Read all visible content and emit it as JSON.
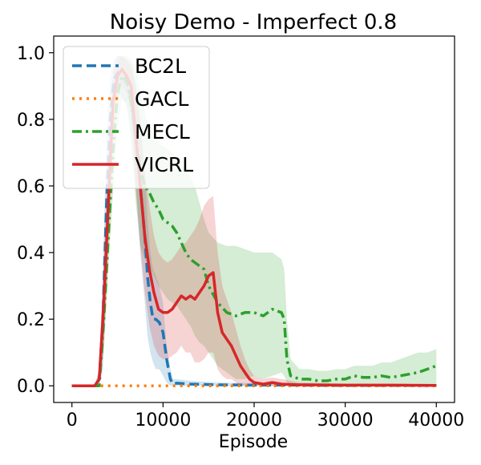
{
  "chart_data": {
    "type": "line",
    "title": "Noisy Demo - Imperfect 0.8",
    "xlabel": "Episode",
    "ylabel": "",
    "xlim": [
      -2000,
      42000
    ],
    "ylim": [
      -0.05,
      1.05
    ],
    "xticks": [
      0,
      10000,
      20000,
      30000,
      40000
    ],
    "xtick_labels": [
      "0",
      "10000",
      "20000",
      "30000",
      "40000"
    ],
    "yticks": [
      0.0,
      0.2,
      0.4,
      0.6,
      0.8,
      1.0
    ],
    "ytick_labels": [
      "0.0",
      "0.2",
      "0.4",
      "0.6",
      "0.8",
      "1.0"
    ],
    "grid": false,
    "legend_position": "top-left",
    "series": [
      {
        "name": "BC2L",
        "color": "#1f77b4",
        "style": "dashed",
        "x": [
          0,
          2500,
          3000,
          3400,
          3800,
          4200,
          4600,
          5000,
          5400,
          5800,
          6200,
          6600,
          7000,
          7500,
          8000,
          8300,
          8600,
          8900,
          9200,
          9600,
          10000,
          10400,
          10800,
          11100,
          11500,
          13000,
          16000,
          20000,
          25000,
          30000,
          35000,
          40000
        ],
        "y": [
          0,
          0,
          0.02,
          0.2,
          0.55,
          0.8,
          0.92,
          0.94,
          0.93,
          0.92,
          0.9,
          0.85,
          0.75,
          0.6,
          0.45,
          0.33,
          0.25,
          0.2,
          0.2,
          0.19,
          0.16,
          0.08,
          0.02,
          0.005,
          0.008,
          0.005,
          0.003,
          0.002,
          0.002,
          0.001,
          0.001,
          0.001
        ],
        "upper": [
          0,
          0,
          0.05,
          0.35,
          0.75,
          0.93,
          0.98,
          0.99,
          0.99,
          0.98,
          0.97,
          0.95,
          0.9,
          0.8,
          0.65,
          0.5,
          0.4,
          0.35,
          0.33,
          0.3,
          0.25,
          0.12,
          0.05,
          0.02,
          0.02,
          0.015,
          0.01,
          0.008,
          0.006,
          0.005,
          0.004,
          0.004
        ],
        "lower": [
          0,
          0,
          0,
          0.05,
          0.35,
          0.65,
          0.85,
          0.88,
          0.87,
          0.85,
          0.82,
          0.75,
          0.6,
          0.4,
          0.25,
          0.15,
          0.1,
          0.07,
          0.05,
          0.05,
          0.03,
          0.01,
          0,
          0,
          0,
          0,
          0,
          0,
          0,
          0,
          0,
          0
        ]
      },
      {
        "name": "GACL",
        "color": "#ff7f0e",
        "style": "dotted",
        "x": [
          0,
          10000,
          20000,
          30000,
          40000
        ],
        "y": [
          0,
          0,
          0,
          0,
          0
        ]
      },
      {
        "name": "MECL",
        "color": "#2ca02c",
        "style": "dashdot",
        "x": [
          0,
          3000,
          3500,
          4000,
          4500,
          5000,
          5500,
          6000,
          6500,
          7000,
          7500,
          8000,
          8500,
          9000,
          9500,
          10000,
          10500,
          11000,
          11500,
          12000,
          12500,
          13000,
          13500,
          14000,
          14500,
          15000,
          16000,
          17000,
          18000,
          19000,
          20000,
          21000,
          22000,
          23000,
          23300,
          23600,
          24000,
          25000,
          26000,
          27000,
          28000,
          29000,
          30000,
          31000,
          32000,
          33000,
          34000,
          35000,
          36000,
          37000,
          38000,
          39000,
          40000
        ],
        "y": [
          0,
          0,
          0.2,
          0.45,
          0.7,
          0.88,
          0.93,
          0.92,
          0.85,
          0.75,
          0.65,
          0.6,
          0.58,
          0.55,
          0.53,
          0.5,
          0.49,
          0.48,
          0.46,
          0.43,
          0.4,
          0.38,
          0.37,
          0.36,
          0.35,
          0.3,
          0.25,
          0.22,
          0.21,
          0.22,
          0.22,
          0.21,
          0.23,
          0.22,
          0.2,
          0.08,
          0.03,
          0.02,
          0.02,
          0.015,
          0.015,
          0.02,
          0.02,
          0.03,
          0.025,
          0.025,
          0.03,
          0.025,
          0.03,
          0.035,
          0.04,
          0.05,
          0.06
        ],
        "upper": [
          0,
          0,
          0.3,
          0.55,
          0.82,
          0.97,
          0.99,
          0.99,
          0.98,
          0.95,
          0.88,
          0.82,
          0.78,
          0.75,
          0.73,
          0.72,
          0.71,
          0.7,
          0.69,
          0.67,
          0.65,
          0.63,
          0.6,
          0.55,
          0.5,
          0.46,
          0.43,
          0.42,
          0.42,
          0.41,
          0.4,
          0.4,
          0.4,
          0.38,
          0.35,
          0.2,
          0.08,
          0.05,
          0.05,
          0.045,
          0.045,
          0.05,
          0.05,
          0.06,
          0.06,
          0.06,
          0.07,
          0.07,
          0.08,
          0.09,
          0.1,
          0.1,
          0.11
        ],
        "lower": [
          0,
          0,
          0.1,
          0.35,
          0.58,
          0.78,
          0.86,
          0.85,
          0.72,
          0.55,
          0.42,
          0.38,
          0.36,
          0.33,
          0.3,
          0.28,
          0.26,
          0.25,
          0.24,
          0.22,
          0.2,
          0.18,
          0.15,
          0.13,
          0.12,
          0.1,
          0.06,
          0.04,
          0.02,
          0.02,
          0.03,
          0.02,
          0.03,
          0.04,
          0.03,
          0.01,
          0,
          0,
          0,
          0,
          0,
          0,
          0,
          0,
          0,
          0,
          0,
          0,
          0,
          0,
          0,
          0,
          0
        ]
      },
      {
        "name": "VICRL",
        "color": "#d62728",
        "style": "solid",
        "x": [
          0,
          2500,
          3000,
          3500,
          4000,
          4500,
          5000,
          5500,
          6000,
          6500,
          7000,
          7500,
          8000,
          8500,
          9000,
          9500,
          10000,
          10500,
          11000,
          11500,
          12000,
          12500,
          13000,
          13500,
          14000,
          14500,
          15000,
          15500,
          16000,
          16500,
          17000,
          17500,
          18000,
          18500,
          19000,
          19500,
          20000,
          21000,
          22000,
          23000,
          25000,
          30000,
          35000,
          40000
        ],
        "y": [
          0,
          0,
          0.02,
          0.25,
          0.55,
          0.85,
          0.93,
          0.95,
          0.93,
          0.9,
          0.75,
          0.6,
          0.45,
          0.35,
          0.28,
          0.23,
          0.22,
          0.22,
          0.23,
          0.25,
          0.27,
          0.26,
          0.27,
          0.26,
          0.28,
          0.3,
          0.33,
          0.34,
          0.22,
          0.16,
          0.14,
          0.12,
          0.09,
          0.06,
          0.04,
          0.02,
          0.01,
          0.005,
          0.01,
          0.005,
          0.003,
          0.002,
          0.002,
          0.001
        ],
        "upper": [
          0,
          0,
          0.05,
          0.38,
          0.7,
          0.95,
          0.99,
          0.99,
          0.98,
          0.97,
          0.9,
          0.78,
          0.64,
          0.54,
          0.45,
          0.4,
          0.38,
          0.37,
          0.38,
          0.4,
          0.42,
          0.43,
          0.45,
          0.47,
          0.5,
          0.54,
          0.56,
          0.57,
          0.4,
          0.3,
          0.26,
          0.22,
          0.17,
          0.12,
          0.08,
          0.05,
          0.03,
          0.02,
          0.025,
          0.02,
          0.01,
          0.006,
          0.005,
          0.004
        ],
        "lower": [
          0,
          0,
          0,
          0.12,
          0.4,
          0.72,
          0.86,
          0.9,
          0.88,
          0.82,
          0.6,
          0.42,
          0.28,
          0.18,
          0.12,
          0.09,
          0.08,
          0.08,
          0.09,
          0.1,
          0.12,
          0.1,
          0.1,
          0.07,
          0.07,
          0.08,
          0.1,
          0.1,
          0.05,
          0.03,
          0.02,
          0.02,
          0.01,
          0,
          0,
          0,
          0,
          0,
          0,
          0,
          0,
          0,
          0,
          0
        ]
      }
    ]
  }
}
